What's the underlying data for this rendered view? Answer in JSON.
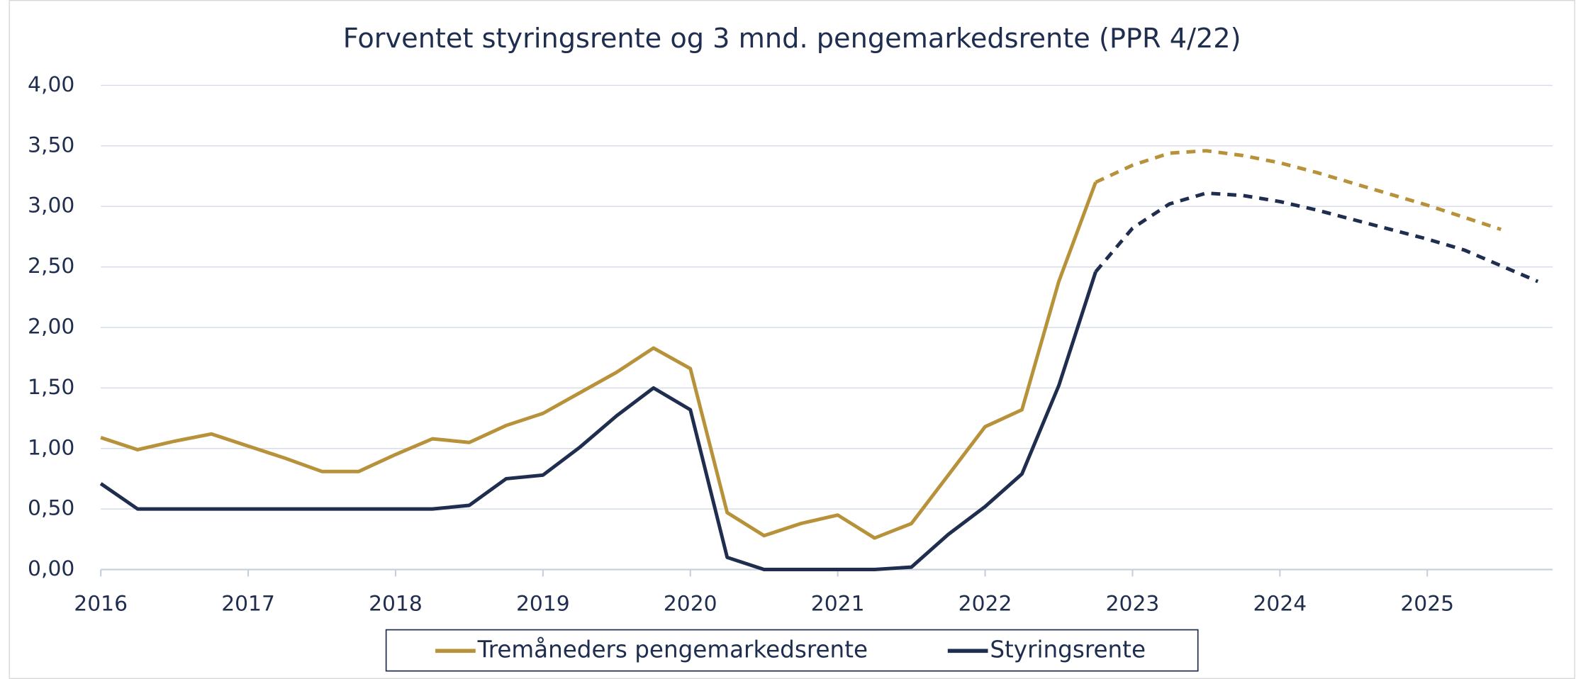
{
  "chart_data": {
    "type": "line",
    "title": "Forventet styringsrente og 3 mnd. pengemarkedsrente (PPR 4/22)",
    "x": [
      2016,
      2016.25,
      2016.5,
      2016.75,
      2017,
      2017.25,
      2017.5,
      2017.75,
      2018,
      2018.25,
      2018.5,
      2018.75,
      2019,
      2019.25,
      2019.5,
      2019.75,
      2020,
      2020.25,
      2020.5,
      2020.75,
      2021,
      2021.25,
      2021.5,
      2021.75,
      2022,
      2022.25,
      2022.5,
      2022.75,
      2023,
      2023.25,
      2023.5,
      2023.75,
      2024,
      2024.25,
      2024.5,
      2024.75,
      2025,
      2025.25,
      2025.5,
      2025.75
    ],
    "series": [
      {
        "name": "Tremåneders pengemarkedsrente",
        "color": "#b8923a",
        "values": [
          1.09,
          0.99,
          1.06,
          1.12,
          1.02,
          0.92,
          0.81,
          0.81,
          0.95,
          1.08,
          1.05,
          1.19,
          1.29,
          1.46,
          1.63,
          1.83,
          1.66,
          0.47,
          0.28,
          0.38,
          0.45,
          0.26,
          0.38,
          0.78,
          1.18,
          1.32,
          2.38,
          3.2,
          null,
          null,
          null,
          null,
          null,
          null,
          null,
          null,
          null,
          null,
          null,
          null
        ],
        "projection": [
          null,
          null,
          null,
          null,
          null,
          null,
          null,
          null,
          null,
          null,
          null,
          null,
          null,
          null,
          null,
          null,
          null,
          null,
          null,
          null,
          null,
          null,
          null,
          null,
          null,
          null,
          null,
          3.2,
          3.34,
          3.44,
          3.46,
          3.42,
          3.36,
          3.28,
          3.19,
          3.1,
          3.01,
          2.91,
          2.81,
          null
        ]
      },
      {
        "name": "Styringsrente",
        "color": "#1f2d4e",
        "values": [
          0.71,
          0.5,
          0.5,
          0.5,
          0.5,
          0.5,
          0.5,
          0.5,
          0.5,
          0.5,
          0.53,
          0.75,
          0.78,
          1.01,
          1.27,
          1.5,
          1.32,
          0.1,
          0.0,
          0.0,
          0.0,
          0.0,
          0.02,
          0.29,
          0.52,
          0.79,
          1.52,
          2.46,
          null,
          null,
          null,
          null,
          null,
          null,
          null,
          null,
          null,
          null,
          null,
          null
        ],
        "projection": [
          null,
          null,
          null,
          null,
          null,
          null,
          null,
          null,
          null,
          null,
          null,
          null,
          null,
          null,
          null,
          null,
          null,
          null,
          null,
          null,
          null,
          null,
          null,
          null,
          null,
          null,
          null,
          2.46,
          2.82,
          3.02,
          3.11,
          3.09,
          3.04,
          2.97,
          2.89,
          2.81,
          2.73,
          2.64,
          2.51,
          2.38
        ]
      }
    ],
    "xlim": [
      2016,
      2025.85
    ],
    "xticks": [
      2016,
      2017,
      2018,
      2019,
      2020,
      2021,
      2022,
      2023,
      2024,
      2025
    ],
    "ylim": [
      0,
      4
    ],
    "yticks": [
      {
        "value": 0,
        "label": "0,00"
      },
      {
        "value": 0.5,
        "label": "0,50"
      },
      {
        "value": 1,
        "label": "1,00"
      },
      {
        "value": 1.5,
        "label": "1,50"
      },
      {
        "value": 2,
        "label": "2,00"
      },
      {
        "value": 2.5,
        "label": "2,50"
      },
      {
        "value": 3,
        "label": "3,00"
      },
      {
        "value": 3.5,
        "label": "3,50"
      },
      {
        "value": 4,
        "label": "4,00"
      }
    ],
    "grid": true,
    "legend": "bottom"
  }
}
